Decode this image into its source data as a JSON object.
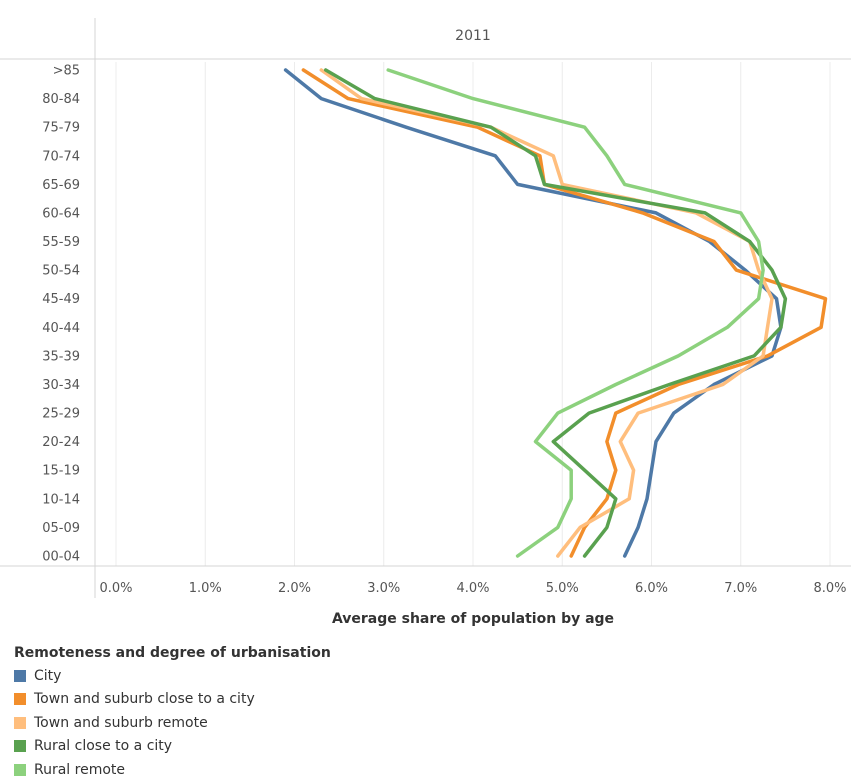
{
  "chart_data": {
    "type": "line",
    "panel_title": "2011",
    "xlabel": "Average share of population by age",
    "x_ticks": [
      "0.0%",
      "1.0%",
      "2.0%",
      "3.0%",
      "4.0%",
      "5.0%",
      "6.0%",
      "7.0%",
      "8.0%"
    ],
    "xlim": [
      0,
      8.2
    ],
    "categories": [
      "00-04",
      "05-09",
      "10-14",
      "15-19",
      "20-24",
      "25-29",
      "30-34",
      "35-39",
      "40-44",
      "45-49",
      "50-54",
      "55-59",
      "60-64",
      "65-69",
      "70-74",
      "75-79",
      "80-84",
      ">85"
    ],
    "legend_title": "Remoteness and degree of urbanisation",
    "series": [
      {
        "name": "City",
        "color": "#4e79a7",
        "values": [
          5.7,
          5.85,
          5.95,
          6.0,
          6.05,
          6.25,
          6.7,
          7.35,
          7.45,
          7.4,
          7.05,
          6.65,
          6.05,
          4.5,
          4.25,
          3.25,
          2.3,
          1.9
        ]
      },
      {
        "name": "Town and suburb close to a city",
        "color": "#f28e2b",
        "values": [
          5.1,
          5.25,
          5.5,
          5.6,
          5.5,
          5.6,
          6.3,
          7.3,
          7.9,
          7.95,
          6.95,
          6.7,
          5.9,
          4.8,
          4.75,
          4.05,
          2.6,
          2.1
        ]
      },
      {
        "name": "Town and suburb remote",
        "color": "#ffbe7d",
        "values": [
          4.95,
          5.2,
          5.75,
          5.8,
          5.65,
          5.85,
          6.8,
          7.25,
          7.3,
          7.35,
          7.2,
          7.1,
          6.5,
          5.0,
          4.9,
          4.2,
          2.75,
          2.3
        ]
      },
      {
        "name": "Rural close to a city",
        "color": "#59a14f",
        "values": [
          5.25,
          5.5,
          5.6,
          5.25,
          4.9,
          5.3,
          6.2,
          7.15,
          7.45,
          7.5,
          7.35,
          7.1,
          6.6,
          4.8,
          4.7,
          4.2,
          2.9,
          2.35
        ]
      },
      {
        "name": "Rural remote",
        "color": "#8cd17d",
        "values": [
          4.5,
          4.95,
          5.1,
          5.1,
          4.7,
          4.95,
          5.6,
          6.3,
          6.85,
          7.2,
          7.25,
          7.2,
          7.0,
          5.7,
          5.5,
          5.25,
          4.0,
          3.05
        ]
      }
    ]
  }
}
